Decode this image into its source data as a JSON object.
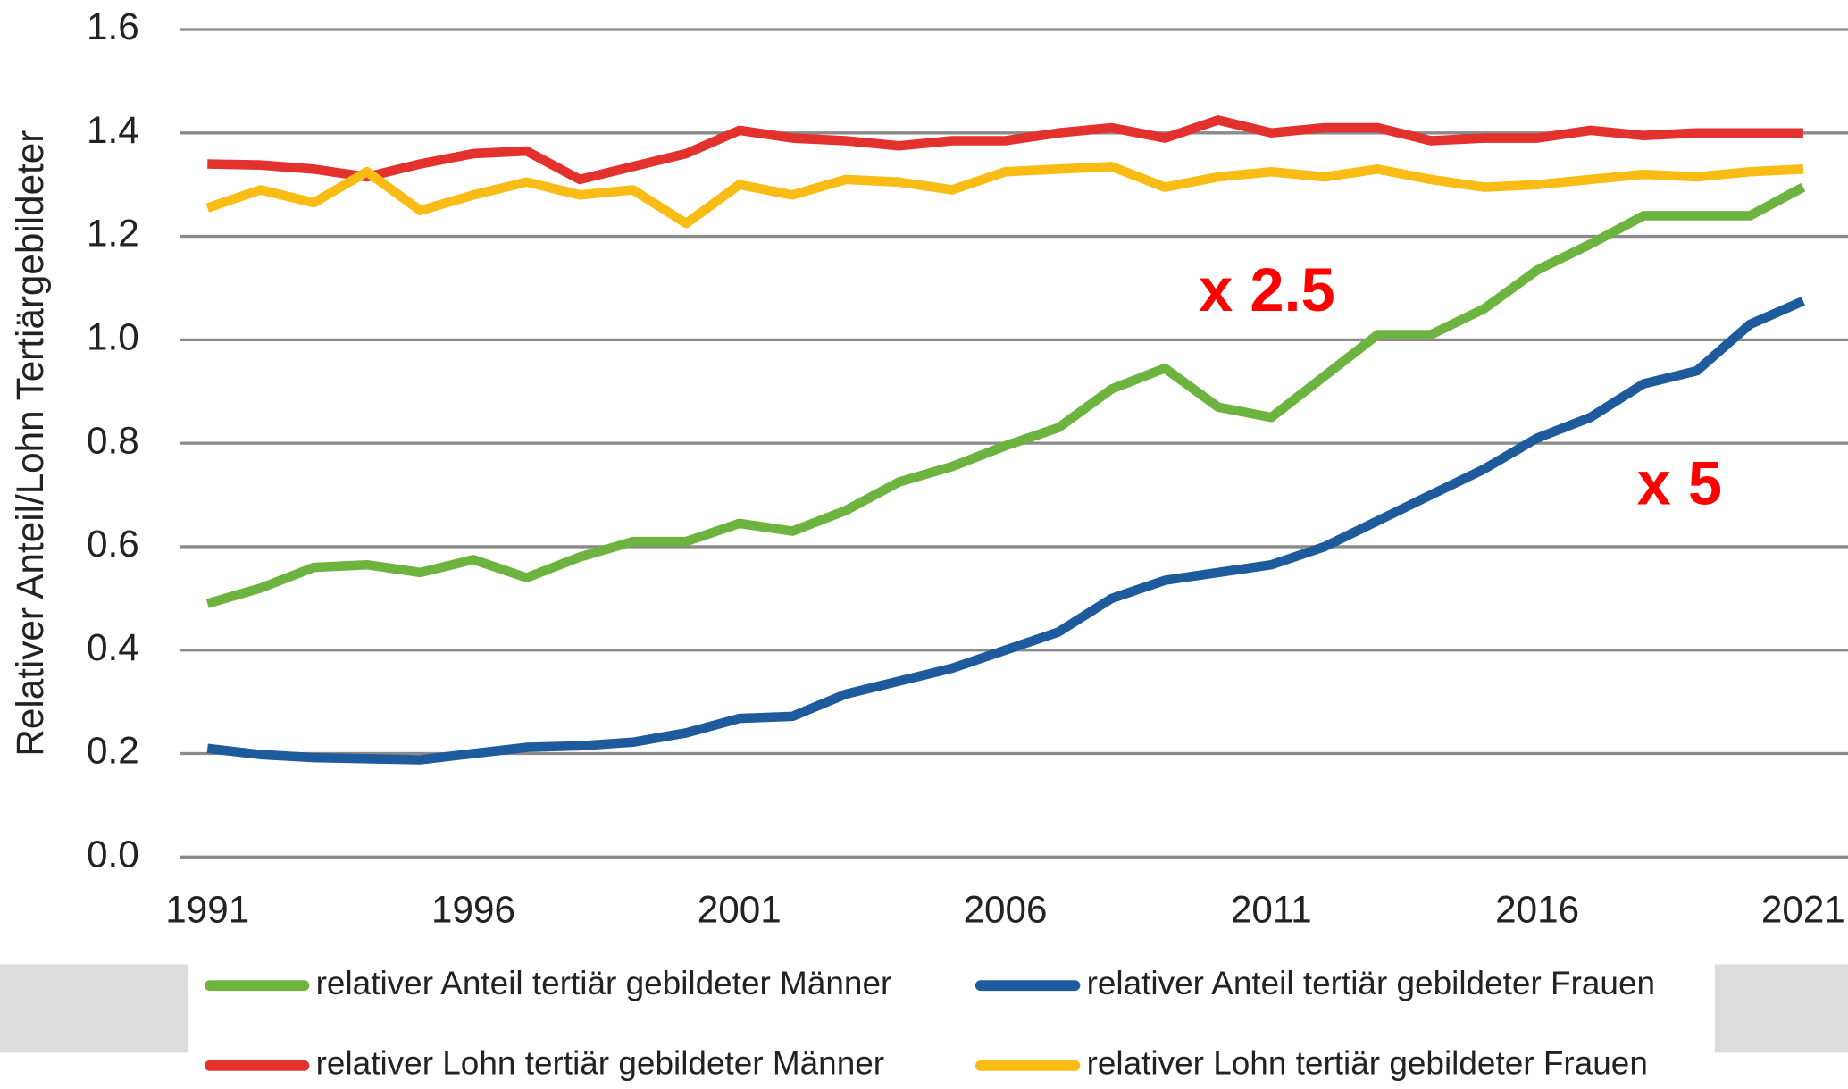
{
  "chart_data": {
    "type": "line",
    "y_label": "Relativer Anteil/Lohn Tertiärgebildeter",
    "x": [
      1991,
      1992,
      1993,
      1994,
      1995,
      1996,
      1997,
      1998,
      1999,
      2000,
      2001,
      2002,
      2003,
      2004,
      2005,
      2006,
      2007,
      2008,
      2009,
      2010,
      2011,
      2012,
      2013,
      2014,
      2015,
      2016,
      2017,
      2018,
      2019,
      2020,
      2021
    ],
    "series": [
      {
        "name": "relativer Anteil tertiär gebildeter Männer",
        "color": "#6db33f",
        "values": [
          0.49,
          0.52,
          0.56,
          0.565,
          0.55,
          0.575,
          0.54,
          0.58,
          0.61,
          0.61,
          0.645,
          0.63,
          0.67,
          0.725,
          0.755,
          0.795,
          0.83,
          0.905,
          0.945,
          0.87,
          0.85,
          0.93,
          1.01,
          1.01,
          1.06,
          1.135,
          1.185,
          1.24,
          1.24,
          1.24,
          1.295
        ]
      },
      {
        "name": "relativer Anteil tertiär gebildeter Frauen",
        "color": "#1d5b9c",
        "values": [
          0.21,
          0.198,
          0.192,
          0.19,
          0.188,
          0.2,
          0.212,
          0.215,
          0.222,
          0.24,
          0.268,
          0.272,
          0.315,
          0.34,
          0.365,
          0.4,
          0.435,
          0.5,
          0.535,
          0.55,
          0.565,
          0.6,
          0.65,
          0.7,
          0.75,
          0.81,
          0.85,
          0.915,
          0.94,
          1.03,
          1.075
        ]
      },
      {
        "name": "relativer Lohn tertiär gebildeter Männer",
        "color": "#e3312d",
        "values": [
          1.34,
          1.338,
          1.33,
          1.315,
          1.34,
          1.36,
          1.365,
          1.31,
          1.335,
          1.36,
          1.405,
          1.39,
          1.385,
          1.375,
          1.385,
          1.385,
          1.4,
          1.41,
          1.39,
          1.425,
          1.4,
          1.41,
          1.41,
          1.385,
          1.39,
          1.39,
          1.405,
          1.395,
          1.4,
          1.4,
          1.4
        ]
      },
      {
        "name": "relativer Lohn tertiär gebildeter Frauen",
        "color": "#f8bc14",
        "values": [
          1.255,
          1.29,
          1.265,
          1.325,
          1.25,
          1.28,
          1.305,
          1.28,
          1.29,
          1.225,
          1.3,
          1.28,
          1.31,
          1.305,
          1.29,
          1.325,
          1.33,
          1.335,
          1.295,
          1.315,
          1.325,
          1.315,
          1.33,
          1.31,
          1.295,
          1.3,
          1.31,
          1.32,
          1.315,
          1.325,
          1.33
        ]
      }
    ],
    "annotations": [
      {
        "text": "x 2.5"
      },
      {
        "text": "x 5"
      }
    ],
    "xlim": [
      1991,
      2021
    ],
    "xticks": [
      1991,
      1996,
      2001,
      2006,
      2011,
      2016,
      2021
    ],
    "ylim": [
      0,
      1.6
    ],
    "yticks": [
      {
        "value": 0,
        "label": "0.0"
      },
      0.2,
      0.4,
      0.6,
      0.8,
      {
        "value": 1,
        "label": "1.0"
      },
      1.2,
      1.4,
      1.6
    ],
    "grid": true,
    "legend": "bottom"
  }
}
